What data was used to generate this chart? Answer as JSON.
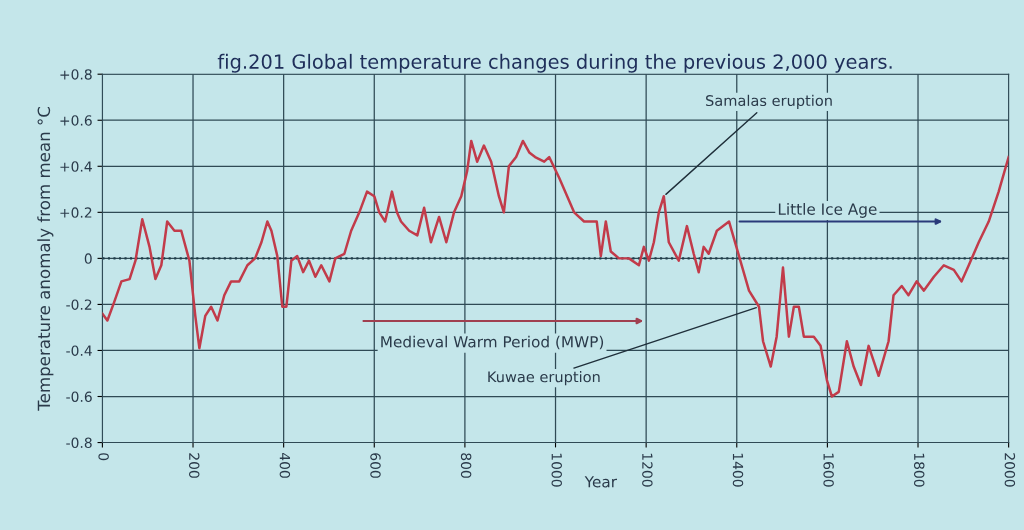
{
  "chart_data": {
    "type": "line",
    "title": "fig.201 Global temperature changes during the previous 2,000 years.",
    "xlabel": "Year",
    "ylabel": "Temperature anomaly from mean °C",
    "x": [
      0,
      11,
      26,
      42,
      60,
      73,
      88,
      104,
      117,
      130,
      143,
      159,
      174,
      192,
      205,
      214,
      227,
      240,
      254,
      269,
      284,
      302,
      320,
      337,
      351,
      364,
      373,
      386,
      397,
      406,
      417,
      430,
      443,
      456,
      470,
      483,
      501,
      514,
      534,
      549,
      567,
      584,
      600,
      611,
      624,
      639,
      650,
      659,
      677,
      695,
      710,
      725,
      743,
      759,
      776,
      792,
      805,
      814,
      827,
      842,
      858,
      875,
      886,
      897,
      913,
      928,
      942,
      955,
      975,
      986,
      1008,
      1041,
      1063,
      1091,
      1100,
      1111,
      1122,
      1140,
      1162,
      1184,
      1195,
      1206,
      1217,
      1228,
      1239,
      1250,
      1272,
      1290,
      1305,
      1316,
      1327,
      1338,
      1356,
      1383,
      1405,
      1427,
      1449,
      1458,
      1475,
      1488,
      1502,
      1515,
      1526,
      1537,
      1548,
      1570,
      1585,
      1599,
      1610,
      1625,
      1643,
      1658,
      1674,
      1691,
      1713,
      1735,
      1746,
      1764,
      1779,
      1797,
      1813,
      1835,
      1857,
      1879,
      1896,
      1912,
      1934,
      1956,
      1978,
      2000
    ],
    "series": [
      {
        "color": "#c23b4a",
        "values": [
          -0.24,
          -0.27,
          -0.19,
          -0.1,
          -0.09,
          -0.01,
          0.17,
          0.05,
          -0.09,
          -0.03,
          0.16,
          0.12,
          0.12,
          -0.01,
          -0.25,
          -0.39,
          -0.25,
          -0.21,
          -0.27,
          -0.16,
          -0.1,
          -0.1,
          -0.03,
          0.0,
          0.07,
          0.16,
          0.12,
          0.01,
          -0.21,
          -0.21,
          -0.01,
          0.01,
          -0.06,
          -0.01,
          -0.08,
          -0.03,
          -0.1,
          0.0,
          0.02,
          0.12,
          0.2,
          0.29,
          0.27,
          0.2,
          0.16,
          0.29,
          0.2,
          0.16,
          0.12,
          0.1,
          0.22,
          0.07,
          0.18,
          0.07,
          0.2,
          0.27,
          0.38,
          0.51,
          0.42,
          0.49,
          0.42,
          0.27,
          0.2,
          0.4,
          0.44,
          0.51,
          0.46,
          0.44,
          0.42,
          0.44,
          0.35,
          0.2,
          0.16,
          0.16,
          0.01,
          0.16,
          0.03,
          0.0,
          0.0,
          -0.03,
          0.05,
          -0.01,
          0.07,
          0.2,
          0.27,
          0.07,
          -0.01,
          0.14,
          0.02,
          -0.06,
          0.05,
          0.02,
          0.12,
          0.16,
          0.01,
          -0.14,
          -0.21,
          -0.36,
          -0.47,
          -0.34,
          -0.04,
          -0.34,
          -0.21,
          -0.21,
          -0.34,
          -0.34,
          -0.38,
          -0.53,
          -0.6,
          -0.58,
          -0.36,
          -0.47,
          -0.55,
          -0.38,
          -0.51,
          -0.36,
          -0.16,
          -0.12,
          -0.16,
          -0.1,
          -0.14,
          -0.08,
          -0.03,
          -0.05,
          -0.1,
          -0.03,
          0.07,
          0.16,
          0.29,
          0.44
        ]
      }
    ],
    "xlim": [
      0,
      2000
    ],
    "xticks": [
      0,
      200,
      400,
      600,
      800,
      1000,
      1200,
      1400,
      1600,
      1800,
      2000
    ],
    "ylim": [
      -0.8,
      0.8
    ],
    "yticks": [
      {
        "value": 0.8,
        "label": "+0.8"
      },
      {
        "value": 0.6,
        "label": "+0.6"
      },
      {
        "value": 0.4,
        "label": "+0.4"
      },
      {
        "value": 0.2,
        "label": "+0.2"
      },
      0,
      -0.2,
      -0.4,
      -0.6,
      -0.8
    ],
    "grid": true,
    "ref_lines": [
      {
        "axis": "y",
        "value": 0,
        "color": "#1f3d4a",
        "line_style": "dotted"
      }
    ],
    "annotations": [
      {
        "text": "Samalas eruption",
        "x": 1239,
        "y": 0.27
      },
      {
        "text": "Kuwae eruption",
        "x": 1449,
        "y": -0.21
      },
      "Medieval Warm Period (MWP)",
      "Little Ice Age"
    ]
  }
}
